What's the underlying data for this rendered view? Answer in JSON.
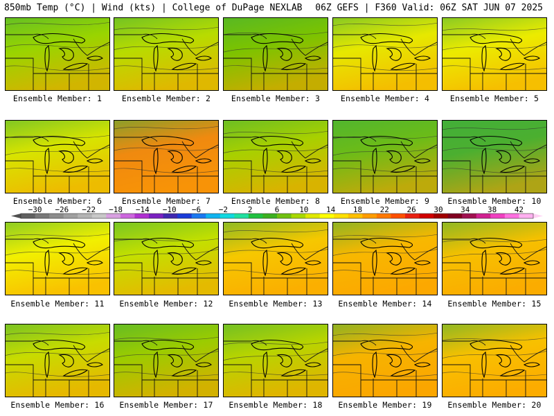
{
  "header": {
    "left": "850mb Temp (°C) | Wind (kts) | College of DuPage NEXLAB",
    "right": "06Z GEFS | F360 Valid: 06Z SAT JUN 07 2025"
  },
  "members": [
    {
      "label": "Ensemble Member: 1",
      "tint": "#9ad400"
    },
    {
      "label": "Ensemble Member: 2",
      "tint": "#b8dc00"
    },
    {
      "label": "Ensemble Member: 3",
      "tint": "#7cc400"
    },
    {
      "label": "Ensemble Member: 4",
      "tint": "#e6e800"
    },
    {
      "label": "Ensemble Member: 5",
      "tint": "#ecec00"
    },
    {
      "label": "Ensemble Member: 6",
      "tint": "#d8e400"
    },
    {
      "label": "Ensemble Member: 7",
      "tint": "#f08a10"
    },
    {
      "label": "Ensemble Member: 8",
      "tint": "#a8d000"
    },
    {
      "label": "Ensemble Member: 9",
      "tint": "#6cbc18"
    },
    {
      "label": "Ensemble Member: 10",
      "tint": "#4cb030"
    },
    {
      "label": "Ensemble Member: 11",
      "tint": "#f2f000"
    },
    {
      "label": "Ensemble Member: 12",
      "tint": "#c4e000"
    },
    {
      "label": "Ensemble Member: 13",
      "tint": "#f6c800"
    },
    {
      "label": "Ensemble Member: 14",
      "tint": "#f8b800"
    },
    {
      "label": "Ensemble Member: 15",
      "tint": "#f6c000"
    },
    {
      "label": "Ensemble Member: 16",
      "tint": "#c8dc00"
    },
    {
      "label": "Ensemble Member: 17",
      "tint": "#9ccc00"
    },
    {
      "label": "Ensemble Member: 18",
      "tint": "#b8d400"
    },
    {
      "label": "Ensemble Member: 19",
      "tint": "#f6b400"
    },
    {
      "label": "Ensemble Member: 20",
      "tint": "#f8c000"
    }
  ],
  "colorbar": {
    "ticks": [
      "−30",
      "−26",
      "−22",
      "−18",
      "−14",
      "−10",
      "−6",
      "−2",
      "2",
      "6",
      "10",
      "14",
      "18",
      "22",
      "26",
      "30",
      "34",
      "38",
      "42"
    ],
    "colors": [
      "#606060",
      "#787878",
      "#8c8c8c",
      "#a0a0a0",
      "#b4b4b4",
      "#c8c8c8",
      "#d8a0e0",
      "#cc66dd",
      "#b030d0",
      "#7a20c0",
      "#4028b0",
      "#1a3cd8",
      "#1a78f0",
      "#10b4f0",
      "#10d8e0",
      "#20e0a0",
      "#20c040",
      "#3cb020",
      "#70c010",
      "#a8d800",
      "#e0e800",
      "#ffff00",
      "#ffe000",
      "#ffc000",
      "#ff9c00",
      "#ff7800",
      "#ff5000",
      "#e82010",
      "#d00000",
      "#a00000",
      "#800020",
      "#a01050",
      "#d02090",
      "#f040c0",
      "#ff70e0",
      "#ffb0f0"
    ]
  }
}
